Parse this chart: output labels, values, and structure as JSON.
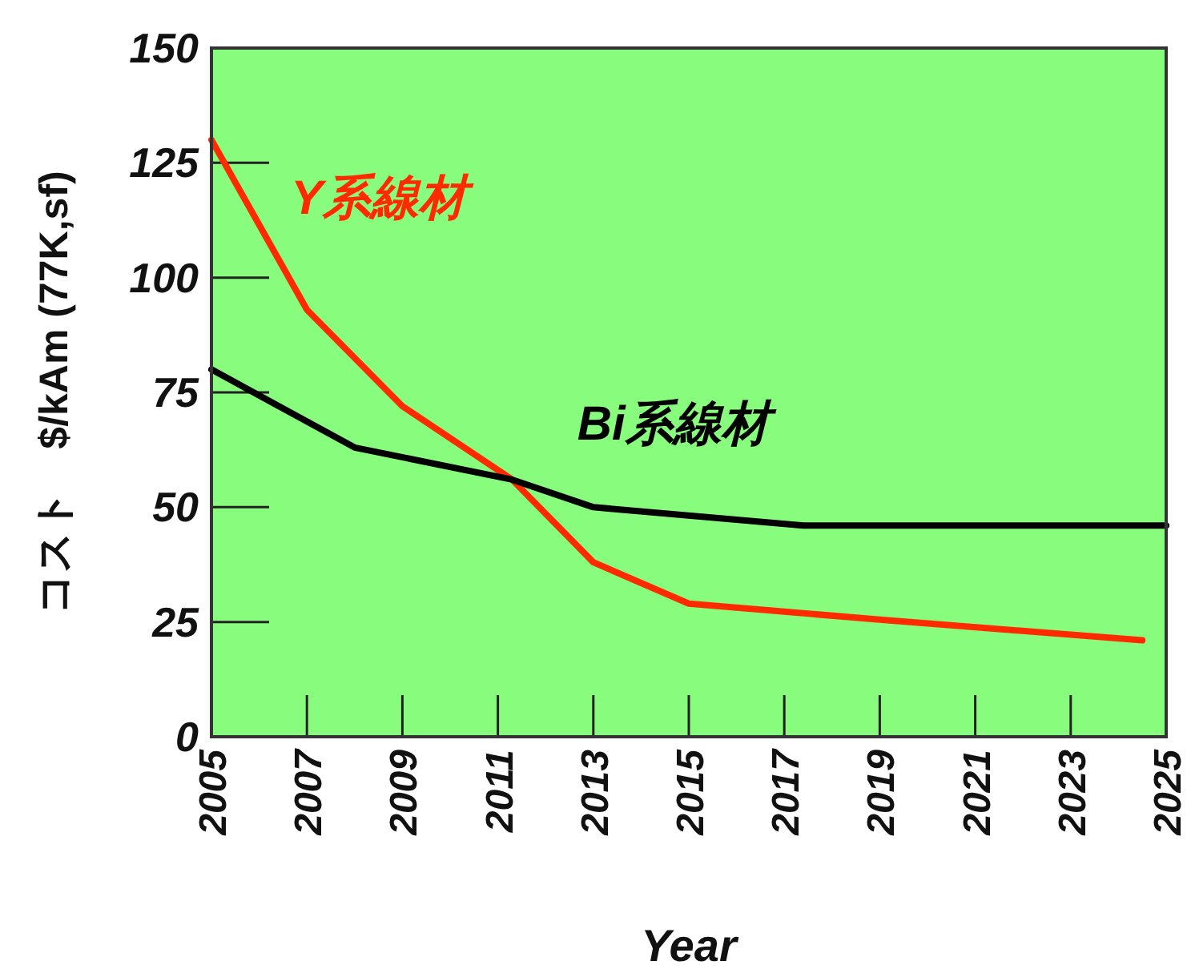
{
  "chart_data": {
    "type": "line",
    "xlabel": "Year",
    "ylabel": "コスト　$/kAm (77K,sf)",
    "xlim": [
      2005,
      2025
    ],
    "ylim": [
      0,
      150
    ],
    "xticks": [
      2005,
      2007,
      2009,
      2011,
      2013,
      2015,
      2017,
      2019,
      2021,
      2023,
      2025
    ],
    "yticks": [
      0,
      25,
      50,
      75,
      100,
      125,
      150
    ],
    "series": [
      {
        "name": "Y系線材",
        "color": "#ff2a00",
        "x": [
          2005,
          2007,
          2009,
          2011.3,
          2013,
          2015,
          2019,
          2024.5
        ],
        "values": [
          130,
          93,
          72,
          56,
          38,
          29,
          25.5,
          21
        ]
      },
      {
        "name": "Bi系線材",
        "color": "#000000",
        "x": [
          2005,
          2008,
          2011.3,
          2013,
          2017.4,
          2025
        ],
        "values": [
          80,
          63,
          56,
          50,
          46,
          46
        ]
      }
    ]
  }
}
